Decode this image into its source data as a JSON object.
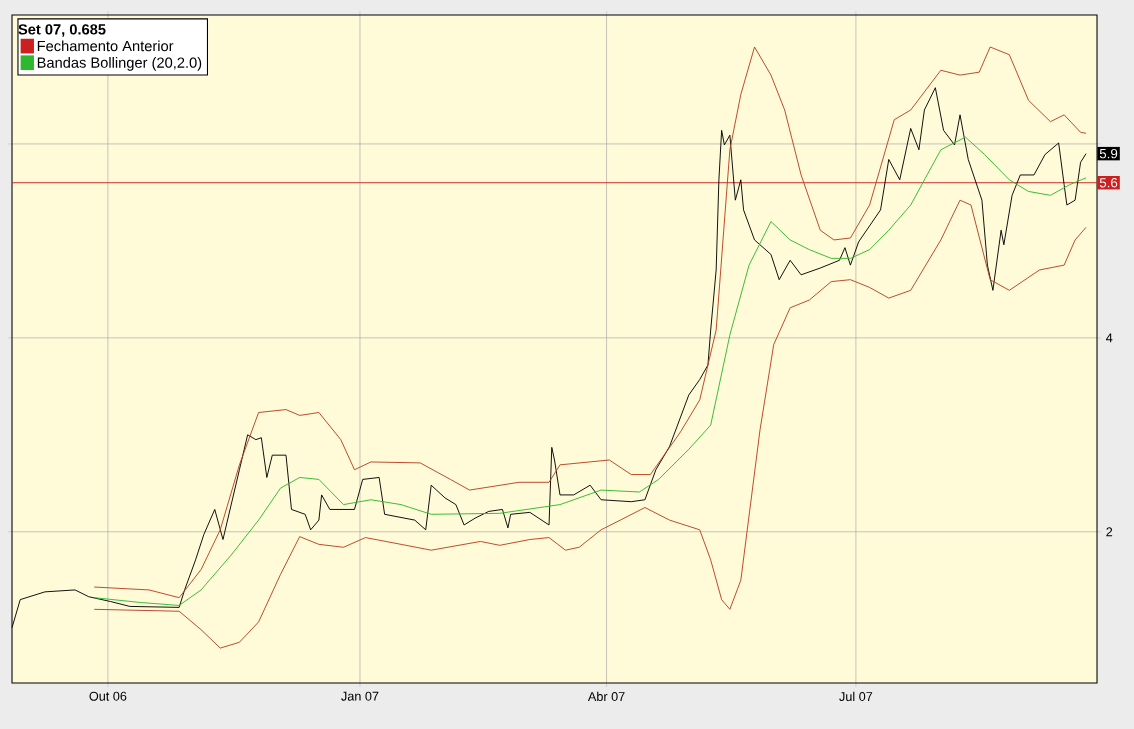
{
  "chart_data": {
    "type": "line",
    "legend_title": "**Set 07, 0.685**",
    "xlim": [
      "2006-08-27",
      "2007-09-27"
    ],
    "xticks": [
      {
        "value": "2006-10-01",
        "label": "Out 06"
      },
      {
        "value": "2007-01-01",
        "label": "Jan 07"
      },
      {
        "value": "2007-04-01",
        "label": "Abr 07"
      },
      {
        "value": "2007-07-01",
        "label": "Jul 07"
      }
    ],
    "ylim": [
      0.44,
      7.33
    ],
    "yticks": [
      2,
      4,
      {
        "value": 6,
        "label": null
      }
    ],
    "grid": true,
    "legend": "top left",
    "series": [
      {
        "name": "Fechamento Anterior",
        "color": "#cc2020",
        "x": [
          "2006-08-27",
          "2007-09-27"
        ],
        "values": [
          5.6,
          5.6
        ],
        "value_labels": [
          null,
          "5.6"
        ]
      },
      {
        "color": "#000000",
        "x": [
          "2006-08-27",
          "2006-08-30",
          "2006-09-08",
          "2006-09-19",
          "2006-09-24",
          "2006-10-02",
          "2006-10-09",
          "2006-10-27",
          "2006-10-29",
          "2006-11-02",
          "2006-11-05",
          "2006-11-09",
          "2006-11-12",
          "2006-11-15",
          "2006-11-18",
          "2006-11-21",
          "2006-11-24",
          "2006-11-26",
          "2006-11-28",
          "2006-11-30",
          "2006-12-05",
          "2006-12-07",
          "2006-12-12",
          "2006-12-14",
          "2006-12-17",
          "2006-12-18",
          "2006-12-21",
          "2006-12-30",
          "2007-01-02",
          "2007-01-08",
          "2007-01-10",
          "2007-01-21",
          "2007-01-25",
          "2007-01-27",
          "2007-02-01",
          "2007-02-05",
          "2007-02-08",
          "2007-02-12",
          "2007-02-17",
          "2007-02-22",
          "2007-02-24",
          "2007-02-25",
          "2007-03-04",
          "2007-03-11",
          "2007-03-12",
          "2007-03-13",
          "2007-03-15",
          "2007-03-20",
          "2007-03-26",
          "2007-03-30",
          "2007-04-10",
          "2007-04-15",
          "2007-04-19",
          "2007-04-24",
          "2007-05-01",
          "2007-05-05",
          "2007-05-08",
          "2007-05-09",
          "2007-05-11",
          "2007-05-12",
          "2007-05-13",
          "2007-05-14",
          "2007-05-16",
          "2007-05-18",
          "2007-05-20",
          "2007-05-21",
          "2007-05-25",
          "2007-05-31",
          "2007-06-03",
          "2007-06-07",
          "2007-06-11",
          "2007-06-18",
          "2007-06-25",
          "2007-06-27",
          "2007-06-29",
          "2007-07-02",
          "2007-07-10",
          "2007-07-13",
          "2007-07-17",
          "2007-07-21",
          "2007-07-24",
          "2007-07-26",
          "2007-07-30",
          "2007-08-02",
          "2007-08-06",
          "2007-08-08",
          "2007-08-11",
          "2007-08-16",
          "2007-08-18",
          "2007-08-20",
          "2007-08-23",
          "2007-08-24",
          "2007-08-27",
          "2007-08-30",
          "2007-09-04",
          "2007-09-08",
          "2007-09-13",
          "2007-09-15",
          "2007-09-16",
          "2007-09-19",
          "2007-09-21",
          "2007-09-23"
        ],
        "values": [
          1.01,
          1.3,
          1.38,
          1.4,
          1.33,
          1.28,
          1.23,
          1.22,
          1.4,
          1.71,
          1.97,
          2.23,
          1.92,
          2.28,
          2.64,
          3.0,
          2.95,
          2.97,
          2.56,
          2.79,
          2.79,
          2.23,
          2.18,
          2.02,
          2.12,
          2.38,
          2.23,
          2.23,
          2.54,
          2.56,
          2.18,
          2.12,
          2.02,
          2.48,
          2.35,
          2.28,
          2.07,
          2.14,
          2.21,
          2.23,
          2.04,
          2.18,
          2.2,
          2.07,
          2.87,
          2.74,
          2.38,
          2.38,
          2.48,
          2.33,
          2.31,
          2.33,
          2.64,
          2.88,
          3.41,
          3.57,
          3.72,
          4.08,
          4.7,
          5.63,
          6.14,
          5.99,
          6.09,
          5.42,
          5.63,
          5.32,
          5.01,
          4.86,
          4.6,
          4.8,
          4.65,
          4.72,
          4.8,
          4.93,
          4.75,
          4.99,
          5.32,
          5.84,
          5.63,
          6.16,
          5.94,
          6.35,
          6.58,
          6.14,
          5.99,
          6.3,
          5.84,
          5.42,
          4.75,
          4.49,
          5.11,
          4.96,
          5.47,
          5.68,
          5.68,
          5.89,
          6.01,
          5.58,
          5.37,
          5.42,
          5.81,
          5.9
        ],
        "value_labels": [
          null,
          null,
          null,
          null,
          null,
          null,
          null,
          null,
          null,
          null,
          null,
          null,
          null,
          null,
          null,
          null,
          null,
          null,
          null,
          null,
          null,
          null,
          null,
          null,
          null,
          null,
          null,
          null,
          null,
          null,
          null,
          null,
          null,
          null,
          null,
          null,
          null,
          null,
          null,
          null,
          null,
          null,
          null,
          null,
          null,
          null,
          null,
          null,
          null,
          null,
          null,
          null,
          null,
          null,
          null,
          null,
          null,
          null,
          null,
          null,
          null,
          null,
          null,
          null,
          null,
          null,
          null,
          null,
          null,
          null,
          null,
          null,
          null,
          null,
          null,
          null,
          null,
          null,
          null,
          null,
          null,
          null,
          null,
          null,
          null,
          null,
          null,
          null,
          null,
          null,
          null,
          null,
          null,
          null,
          null,
          null,
          null,
          null,
          null,
          null,
          null,
          "5.9"
        ]
      },
      {
        "color": "#b8401e",
        "x": [
          "2006-09-26",
          "2006-10-16",
          "2006-10-27",
          "2006-11-04",
          "2006-11-11",
          "2006-11-18",
          "2006-11-25",
          "2006-12-05",
          "2006-12-10",
          "2006-12-17",
          "2006-12-25",
          "2006-12-30",
          "2007-01-05",
          "2007-01-23",
          "2007-02-03",
          "2007-02-10",
          "2007-02-28",
          "2007-03-11",
          "2007-03-15",
          "2007-04-02",
          "2007-04-10",
          "2007-04-17",
          "2007-04-22",
          "2007-04-28",
          "2007-05-05",
          "2007-05-11",
          "2007-05-16",
          "2007-05-20",
          "2007-05-25",
          "2007-05-31",
          "2007-06-05",
          "2007-06-11",
          "2007-06-18",
          "2007-06-23",
          "2007-06-29",
          "2007-07-06",
          "2007-07-15",
          "2007-07-21",
          "2007-08-01",
          "2007-08-08",
          "2007-08-15",
          "2007-08-19",
          "2007-08-26",
          "2007-09-02",
          "2007-09-10",
          "2007-09-15",
          "2007-09-21",
          "2007-09-23"
        ],
        "values": [
          1.43,
          1.4,
          1.32,
          1.61,
          2.02,
          2.69,
          3.23,
          3.26,
          3.2,
          3.23,
          2.95,
          2.64,
          2.72,
          2.71,
          2.54,
          2.43,
          2.51,
          2.51,
          2.69,
          2.74,
          2.59,
          2.59,
          2.79,
          3.03,
          3.36,
          4.08,
          5.94,
          6.51,
          7.0,
          6.71,
          6.35,
          5.68,
          5.11,
          5.01,
          5.03,
          5.37,
          6.25,
          6.35,
          6.76,
          6.71,
          6.74,
          7.0,
          6.92,
          6.45,
          6.23,
          6.3,
          6.12,
          6.11
        ]
      },
      {
        "name": "Bandas Bollinger (20,2.0)",
        "color": "#2db82d",
        "x": [
          "2006-09-26",
          "2006-10-13",
          "2006-10-27",
          "2006-11-04",
          "2006-11-15",
          "2006-11-25",
          "2006-12-03",
          "2006-12-10",
          "2006-12-17",
          "2006-12-26",
          "2007-01-05",
          "2007-01-16",
          "2007-01-27",
          "2007-02-21",
          "2007-03-15",
          "2007-03-30",
          "2007-04-13",
          "2007-04-20",
          "2007-05-01",
          "2007-05-09",
          "2007-05-16",
          "2007-05-23",
          "2007-05-31",
          "2007-06-07",
          "2007-06-14",
          "2007-06-22",
          "2007-06-29",
          "2007-07-06",
          "2007-07-13",
          "2007-07-21",
          "2007-08-01",
          "2007-08-10",
          "2007-08-17",
          "2007-08-26",
          "2007-09-02",
          "2007-09-10",
          "2007-09-17",
          "2007-09-23"
        ],
        "values": [
          1.32,
          1.27,
          1.24,
          1.4,
          1.76,
          2.12,
          2.45,
          2.56,
          2.54,
          2.28,
          2.33,
          2.28,
          2.18,
          2.19,
          2.28,
          2.43,
          2.41,
          2.54,
          2.85,
          3.1,
          4.03,
          4.75,
          5.2,
          5.01,
          4.91,
          4.82,
          4.82,
          4.91,
          5.11,
          5.37,
          5.94,
          6.07,
          5.89,
          5.63,
          5.51,
          5.47,
          5.58,
          5.65
        ]
      },
      {
        "color": "#b8401e",
        "x": [
          "2006-09-26",
          "2006-10-27",
          "2006-11-04",
          "2006-11-11",
          "2006-11-18",
          "2006-11-25",
          "2006-12-03",
          "2006-12-10",
          "2006-12-17",
          "2006-12-26",
          "2007-01-03",
          "2007-01-16",
          "2007-01-27",
          "2007-02-14",
          "2007-02-21",
          "2007-03-04",
          "2007-03-11",
          "2007-03-17",
          "2007-03-22",
          "2007-03-30",
          "2007-04-06",
          "2007-04-15",
          "2007-04-24",
          "2007-05-05",
          "2007-05-09",
          "2007-05-13",
          "2007-05-16",
          "2007-05-20",
          "2007-05-27",
          "2007-06-01",
          "2007-06-07",
          "2007-06-14",
          "2007-06-22",
          "2007-06-29",
          "2007-07-06",
          "2007-07-13",
          "2007-07-21",
          "2007-08-01",
          "2007-08-08",
          "2007-08-12",
          "2007-08-19",
          "2007-08-26",
          "2007-09-06",
          "2007-09-15",
          "2007-09-19",
          "2007-09-23"
        ],
        "values": [
          1.2,
          1.18,
          0.99,
          0.8,
          0.86,
          1.07,
          1.56,
          1.95,
          1.87,
          1.84,
          1.94,
          1.87,
          1.81,
          1.9,
          1.86,
          1.92,
          1.94,
          1.81,
          1.84,
          2.02,
          2.12,
          2.25,
          2.12,
          2.02,
          1.71,
          1.3,
          1.2,
          1.5,
          3.05,
          3.93,
          4.31,
          4.39,
          4.58,
          4.6,
          4.52,
          4.41,
          4.49,
          5.01,
          5.42,
          5.37,
          4.6,
          4.49,
          4.7,
          4.75,
          5.01,
          5.14
        ]
      }
    ]
  }
}
